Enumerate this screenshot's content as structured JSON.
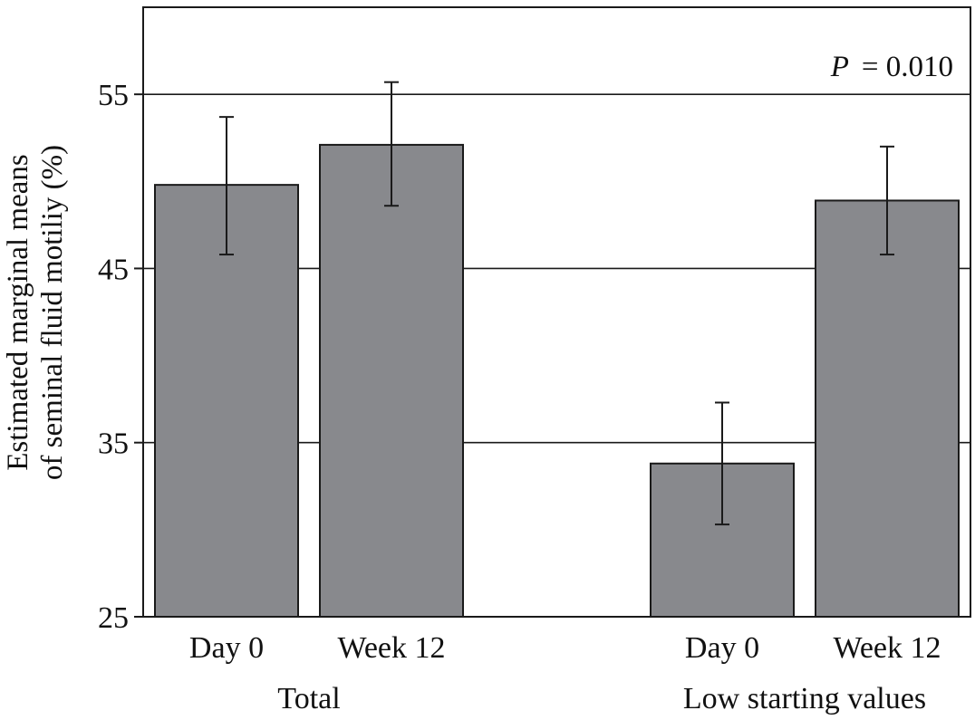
{
  "chart_data": {
    "type": "bar",
    "ylabel_lines": [
      "Estimated marginal means",
      "of seminal fluid motiliy (%)"
    ],
    "ylim": [
      25,
      60
    ],
    "yticks": [
      25,
      35,
      45,
      55
    ],
    "grid": "horizontal",
    "annotation": {
      "italic": "P",
      "rest": "= 0.010"
    },
    "groups": [
      {
        "label": "Total",
        "categories": [
          "Day 0",
          "Week 12"
        ],
        "values": [
          49.8,
          52.1
        ],
        "error_low": [
          45.8,
          48.6
        ],
        "error_high": [
          53.7,
          55.7
        ]
      },
      {
        "label": "Low starting values",
        "categories": [
          "Day 0",
          "Week 12"
        ],
        "values": [
          33.8,
          48.9
        ],
        "error_low": [
          30.3,
          45.8
        ],
        "error_high": [
          37.3,
          52.0
        ]
      }
    ],
    "colors": {
      "bar": "#88898d",
      "bar_edge": "#1a1a1a",
      "grid": "#1a1a1a"
    }
  }
}
